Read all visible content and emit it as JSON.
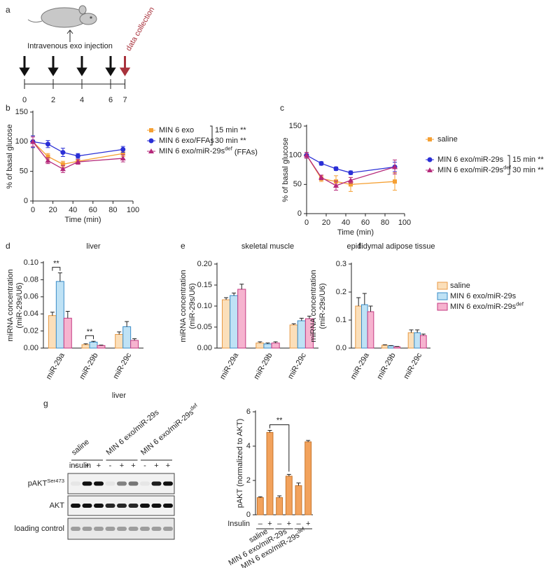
{
  "panel_labels": [
    "a",
    "b",
    "c",
    "d",
    "e",
    "f",
    "g"
  ],
  "timeline": {
    "days": [
      0,
      2,
      4,
      6,
      7
    ],
    "injection_label": "Intravenous exo injection",
    "collection_label": "data collection"
  },
  "chart_data": [
    {
      "type": "line",
      "ylabel": "% of basal glucose",
      "xlabel": "Time (min)",
      "x": [
        0,
        15,
        30,
        45,
        90
      ],
      "xlim": [
        0,
        100
      ],
      "xticks": [
        0,
        20,
        40,
        60,
        80,
        100
      ],
      "ylim": [
        0,
        150
      ],
      "yticks": [
        0,
        50,
        100,
        150
      ],
      "series": [
        {
          "name": "MIN 6 exo",
          "color": "#f5a033",
          "marker": "square",
          "values": [
            100,
            75,
            62,
            67,
            80
          ],
          "errors": [
            10,
            5,
            5,
            5,
            5
          ]
        },
        {
          "name": "MIN 6 exo/FFAs",
          "color": "#2a2fd6",
          "marker": "circle",
          "values": [
            100,
            96,
            82,
            76,
            87
          ],
          "errors": [
            10,
            6,
            7,
            4,
            5
          ]
        },
        {
          "name": "MIN 6 exo/miR-29s",
          "superscript": "def",
          "suffix": " (FFAs)",
          "color": "#b5287a",
          "marker": "triangle",
          "values": [
            100,
            68,
            54,
            66,
            72
          ],
          "errors": [
            8,
            5,
            6,
            4,
            6
          ]
        }
      ],
      "annotations": [
        "15 min **",
        "30 min **"
      ]
    },
    {
      "type": "line",
      "ylabel": "% of basal glucose",
      "xlabel": "Time (min)",
      "x": [
        0,
        15,
        30,
        45,
        90
      ],
      "xlim": [
        0,
        100
      ],
      "xticks": [
        0,
        20,
        40,
        60,
        80,
        100
      ],
      "ylim": [
        0,
        150
      ],
      "yticks": [
        0,
        50,
        100,
        150
      ],
      "series": [
        {
          "name": "saline",
          "color": "#f5a033",
          "marker": "square",
          "values": [
            100,
            60,
            55,
            50,
            55
          ],
          "errors": [
            5,
            5,
            10,
            12,
            15
          ]
        },
        {
          "name": "MIN 6 exo/miR-29s",
          "color": "#2a2fd6",
          "marker": "circle",
          "values": [
            100,
            86,
            77,
            70,
            80
          ],
          "errors": [
            5,
            3,
            3,
            3,
            8
          ]
        },
        {
          "name": "MIN 6 exo/miR-29s",
          "superscript": "def",
          "color": "#b5287a",
          "marker": "triangle",
          "values": [
            100,
            62,
            48,
            57,
            80
          ],
          "errors": [
            5,
            4,
            8,
            5,
            12
          ]
        }
      ],
      "annotations": [
        "15 min **",
        "30 min **"
      ]
    },
    {
      "type": "bar",
      "title": "liver",
      "ylabel": [
        "miRNA concentration",
        "(miR-29s/U6)"
      ],
      "categories": [
        "miR-29a",
        "miR-29b",
        "miR-29c"
      ],
      "ylim": [
        0,
        0.1
      ],
      "yticks": [
        {
          "value": 0,
          "label": "0.00"
        },
        {
          "value": 0.02,
          "label": "0.02"
        },
        {
          "value": 0.04,
          "label": "0.04"
        },
        {
          "value": 0.06,
          "label": "0.06"
        },
        {
          "value": 0.08,
          "label": "0.08"
        },
        {
          "value": 0.1,
          "label": "0.10"
        }
      ],
      "series": [
        {
          "name": "saline",
          "color": "#fbdfba",
          "edgecolor": "#e89a45",
          "values": [
            0.038,
            0.004,
            0.016
          ],
          "errors": [
            0.004,
            0.001,
            0.003
          ]
        },
        {
          "name": "MIN 6 exo/miR-29s",
          "color": "#bfe2f5",
          "edgecolor": "#3a8cc8",
          "values": [
            0.078,
            0.007,
            0.025
          ],
          "errors": [
            0.01,
            0.001,
            0.006
          ]
        },
        {
          "name": "MIN 6 exo/miR-29s",
          "superscript": "def",
          "color": "#f6b3cf",
          "edgecolor": "#c43a82",
          "values": [
            0.035,
            0.003,
            0.009
          ],
          "errors": [
            0.008,
            0.0005,
            0.002
          ]
        }
      ],
      "significance": [
        "**",
        "**"
      ]
    },
    {
      "type": "bar",
      "title": "skeletal muscle",
      "ylabel": [
        "miRNA concentration",
        "(miR-29s/U6)"
      ],
      "categories": [
        "miR-29a",
        "miR-29b",
        "miR-29c"
      ],
      "ylim": [
        0,
        0.2
      ],
      "yticks": [
        {
          "value": 0,
          "label": "0.00"
        },
        {
          "value": 0.05,
          "label": "0.05"
        },
        {
          "value": 0.1,
          "label": "0.10"
        },
        {
          "value": 0.15,
          "label": "0.15"
        },
        {
          "value": 0.2,
          "label": "0.20"
        }
      ],
      "series": [
        {
          "color": "#fbdfba",
          "edgecolor": "#e89a45",
          "values": [
            0.115,
            0.012,
            0.055
          ],
          "errors": [
            0.005,
            0.003,
            0.003
          ]
        },
        {
          "color": "#bfe2f5",
          "edgecolor": "#3a8cc8",
          "values": [
            0.125,
            0.01,
            0.065
          ],
          "errors": [
            0.006,
            0.002,
            0.006
          ]
        },
        {
          "color": "#f6b3cf",
          "edgecolor": "#c43a82",
          "values": [
            0.14,
            0.012,
            0.07
          ],
          "errors": [
            0.012,
            0.003,
            0.006
          ]
        }
      ]
    },
    {
      "type": "bar",
      "title": "epididymal adipose tissue",
      "ylabel": [
        "miRNA concentration",
        "(miR-29s/U6)"
      ],
      "categories": [
        "miR-29a",
        "miR-29b",
        "miR-29c"
      ],
      "ylim": [
        0,
        0.3
      ],
      "yticks": [
        {
          "value": 0,
          "label": "0.0"
        },
        {
          "value": 0.1,
          "label": "0.1"
        },
        {
          "value": 0.2,
          "label": "0.2"
        },
        {
          "value": 0.3,
          "label": "0.3"
        }
      ],
      "series": [
        {
          "color": "#fbdfba",
          "edgecolor": "#e89a45",
          "values": [
            0.15,
            0.01,
            0.055
          ],
          "errors": [
            0.03,
            0.002,
            0.01
          ]
        },
        {
          "color": "#bfe2f5",
          "edgecolor": "#3a8cc8",
          "values": [
            0.155,
            0.008,
            0.055
          ],
          "errors": [
            0.04,
            0.001,
            0.01
          ]
        },
        {
          "color": "#f6b3cf",
          "edgecolor": "#c43a82",
          "values": [
            0.13,
            0.005,
            0.045
          ],
          "errors": [
            0.02,
            0.001,
            0.005
          ]
        }
      ]
    },
    {
      "type": "bar",
      "ylabel": "pAKT (normalized to AKT)",
      "ylim": [
        0,
        6
      ],
      "yticks": [
        0,
        2,
        4,
        6
      ],
      "row_label": "Insulin",
      "categories": [
        "–",
        "+",
        "–",
        "+",
        "–",
        "+"
      ],
      "values": [
        1.0,
        4.8,
        1.0,
        2.25,
        1.7,
        4.25
      ],
      "errors": [
        0.05,
        0.12,
        0.1,
        0.1,
        0.15,
        0.08
      ],
      "color": "#f2a25c",
      "edgecolor": "#c8742a",
      "groups": [
        {
          "name": "saline"
        },
        {
          "name": "MIN 6 exo/miR-29s"
        },
        {
          "name": "MIN 6 exo/miR-29s",
          "superscript": "def"
        }
      ],
      "significance": [
        "**"
      ]
    }
  ],
  "blot": {
    "title": "liver",
    "row_header": "insulin",
    "columns": [
      {
        "name": "saline"
      },
      {
        "name": "MIN 6 exo/miR-29s"
      },
      {
        "name": "MIN 6 exo/miR-29s",
        "superscript": "def"
      }
    ],
    "signs": [
      "-",
      "+",
      "+",
      "-",
      "+",
      "+",
      "-",
      "+",
      "+"
    ],
    "rows": [
      {
        "name": "pAKT",
        "superscript": "Ser473"
      },
      {
        "name": "AKT"
      },
      {
        "name": "loading control"
      }
    ]
  }
}
